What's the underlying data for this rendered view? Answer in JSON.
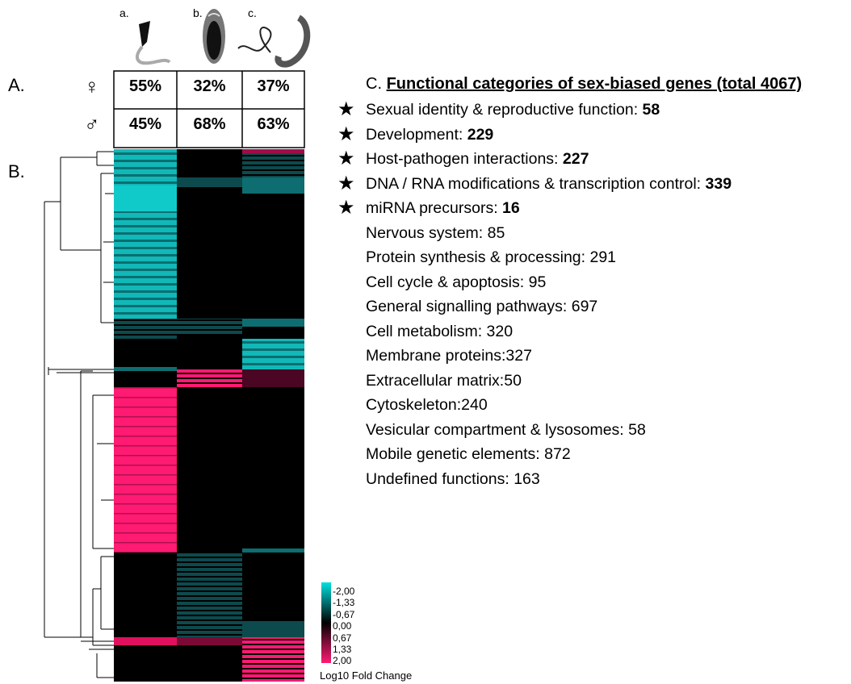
{
  "panels": {
    "a": "A.",
    "b": "B.",
    "c": "C."
  },
  "organisms": [
    "a.",
    "b.",
    "c."
  ],
  "table": {
    "rows": [
      {
        "symbol": "♀",
        "cells": [
          "55%",
          "32%",
          "37%"
        ]
      },
      {
        "symbol": "♂",
        "cells": [
          "45%",
          "68%",
          "63%"
        ]
      }
    ]
  },
  "legend": {
    "ticks": [
      "-2,00",
      "-1,33",
      "-0,67",
      "0,00",
      "0,67",
      "1,33",
      "2,00"
    ],
    "title": "Log10 Fold Change"
  },
  "categories": {
    "title": "Functional categories of sex-biased genes (total 4067)",
    "items": [
      {
        "label": "Sexual identity & reproductive function: ",
        "count": 58,
        "highlighted": true
      },
      {
        "label": "Development: ",
        "count": 229,
        "highlighted": true
      },
      {
        "label": "Host-pathogen interactions: ",
        "count": 227,
        "highlighted": true
      },
      {
        "label": "DNA / RNA modifications & transcription control: ",
        "count": 339,
        "highlighted": true
      },
      {
        "label": "miRNA precursors: ",
        "count": 16,
        "highlighted": true
      },
      {
        "label": "Nervous system: ",
        "count": 85,
        "highlighted": false
      },
      {
        "label": "Protein synthesis & processing: ",
        "count": 291,
        "highlighted": false
      },
      {
        "label": "Cell cycle & apoptosis: ",
        "count": 95,
        "highlighted": false
      },
      {
        "label": "General signalling pathways: ",
        "count": 697,
        "highlighted": false
      },
      {
        "label": "Cell metabolism: ",
        "count": 320,
        "highlighted": false
      },
      {
        "label": "Membrane proteins:",
        "count": 327,
        "highlighted": false
      },
      {
        "label": "Extracellular matrix:",
        "count": 50,
        "highlighted": false
      },
      {
        "label": "Cytoskeleton:",
        "count": 240,
        "highlighted": false
      },
      {
        "label": "Vesicular compartment & lysosomes: ",
        "count": 58,
        "highlighted": false
      },
      {
        "label": "Mobile genetic elements: ",
        "count": 872,
        "highlighted": false
      },
      {
        "label": "Undefined functions: ",
        "count": 163,
        "highlighted": false
      }
    ]
  }
}
